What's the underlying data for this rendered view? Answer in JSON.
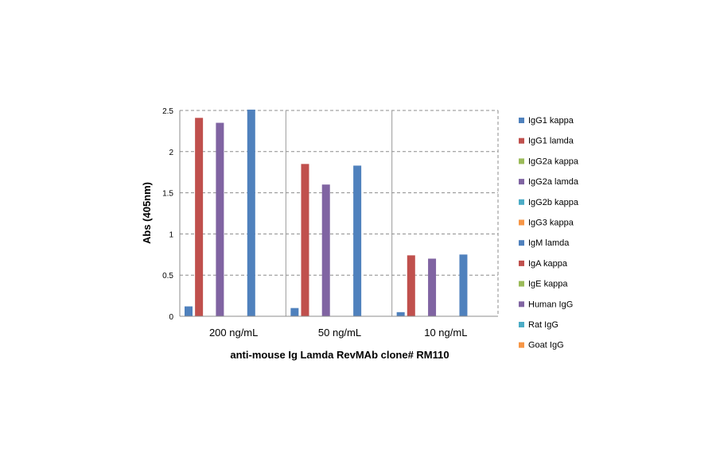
{
  "chart_data": {
    "type": "bar",
    "title": "",
    "xlabel": "anti-mouse  Ig Lamda RevMAb clone# RM110",
    "ylabel": "Abs (405nm)",
    "ylim": [
      0,
      2.5
    ],
    "yticks": [
      "0",
      "0.5",
      "1",
      "1.5",
      "2",
      "2.5"
    ],
    "grid": true,
    "legend_position": "right",
    "categories": [
      "200 ng/mL",
      "50 ng/mL",
      "10 ng/mL"
    ],
    "series": [
      {
        "name": "IgG1 kappa",
        "color": "#4f81bd",
        "values": [
          0.12,
          0.1,
          0.05
        ]
      },
      {
        "name": "IgG1 lamda",
        "color": "#c0504d",
        "values": [
          2.41,
          1.85,
          0.74
        ]
      },
      {
        "name": "IgG2a kappa",
        "color": "#9bbb59",
        "values": [
          0.005,
          0.0,
          0.0
        ]
      },
      {
        "name": "IgG2a lamda",
        "color": "#8064a2",
        "values": [
          2.35,
          1.6,
          0.7
        ]
      },
      {
        "name": "IgG2b kappa",
        "color": "#4bacc6",
        "values": [
          0.0,
          0.0,
          0.0
        ]
      },
      {
        "name": "IgG3 kappa",
        "color": "#f79646",
        "values": [
          0.005,
          0.0,
          0.0
        ]
      },
      {
        "name": "IgM lamda",
        "color": "#4f81bd",
        "values": [
          2.51,
          1.83,
          0.75
        ]
      },
      {
        "name": "IgA kappa",
        "color": "#c0504d",
        "values": [
          0.0,
          0.0,
          0.0
        ]
      },
      {
        "name": "IgE kappa",
        "color": "#9bbb59",
        "values": [
          0.0,
          0.0,
          0.0
        ]
      },
      {
        "name": "Human IgG",
        "color": "#8064a2",
        "values": [
          0.0,
          0.0,
          0.0
        ]
      },
      {
        "name": "Rat IgG",
        "color": "#4bacc6",
        "values": [
          0.0,
          0.0,
          0.0
        ]
      },
      {
        "name": "Goat IgG",
        "color": "#f79646",
        "values": [
          0.0,
          0.0,
          0.0
        ]
      }
    ]
  }
}
